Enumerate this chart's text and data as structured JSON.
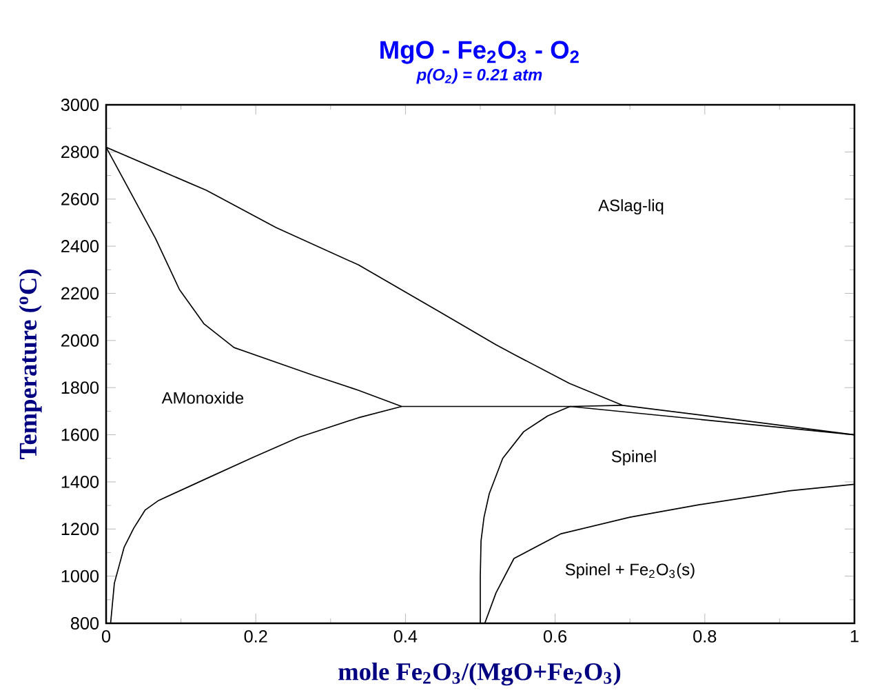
{
  "chart_data": {
    "type": "line",
    "title": "MgO - Fe$_{2}$O$_{3}$ - O$_{2}$",
    "subtitle": "p(O$_{2}$) = 0.21 atm",
    "xlabel": "mole Fe$_{2}$O$_{3}$/(MgO+Fe$_{2}$O$_{3}$)",
    "ylabel": "Temperature ($^{o}$C)",
    "xlim": [
      0,
      1
    ],
    "ylim": [
      800,
      3000
    ],
    "xticks": [
      0,
      0.2,
      0.4,
      0.6,
      0.8,
      1
    ],
    "yticks": [
      800,
      1000,
      1200,
      1400,
      1600,
      1800,
      2000,
      2200,
      2400,
      2600,
      2800,
      3000
    ],
    "series": [
      {
        "color": "#000000",
        "x": [
          0,
          0.134,
          0.227,
          0.337,
          0.448,
          0.521,
          0.545,
          0.619,
          0.69,
          0.853,
          1
        ],
        "values": [
          2820,
          2637,
          2479,
          2321,
          2117,
          1982,
          1941,
          1818,
          1725,
          1660,
          1600
        ]
      },
      {
        "color": "#000000",
        "x": [
          0,
          0.066,
          0.098,
          0.131,
          0.171,
          0.276,
          0.337,
          0.395,
          0.62,
          0.69
        ],
        "values": [
          2820,
          2433,
          2216,
          2070,
          1970,
          1853,
          1789,
          1720,
          1720,
          1725
        ]
      },
      {
        "color": "#000000",
        "x": [
          0.006,
          0.011,
          0.024,
          0.037,
          0.052,
          0.07,
          0.134,
          0.195,
          0.258,
          0.337,
          0.395
        ],
        "values": [
          800,
          970,
          1122,
          1204,
          1280,
          1321,
          1414,
          1502,
          1590,
          1672,
          1720
        ]
      },
      {
        "color": "#000000",
        "x": [
          0.5,
          0.5,
          0.501,
          0.505,
          0.512,
          0.53,
          0.558,
          0.59,
          0.62,
          1
        ],
        "values": [
          800,
          1000,
          1150,
          1250,
          1350,
          1500,
          1613,
          1680,
          1720,
          1600
        ]
      },
      {
        "color": "#000000",
        "x": [
          0.506,
          0.521,
          0.545,
          0.608,
          0.7,
          0.792,
          0.913,
          1
        ],
        "values": [
          800,
          929,
          1075,
          1180,
          1250,
          1303,
          1362,
          1390
        ]
      }
    ],
    "annotations": [
      "ASlag-liq",
      "AMonoxide",
      "Spinel",
      "Spinel + Fe$_{2}$O$_{3}$(s)"
    ]
  }
}
